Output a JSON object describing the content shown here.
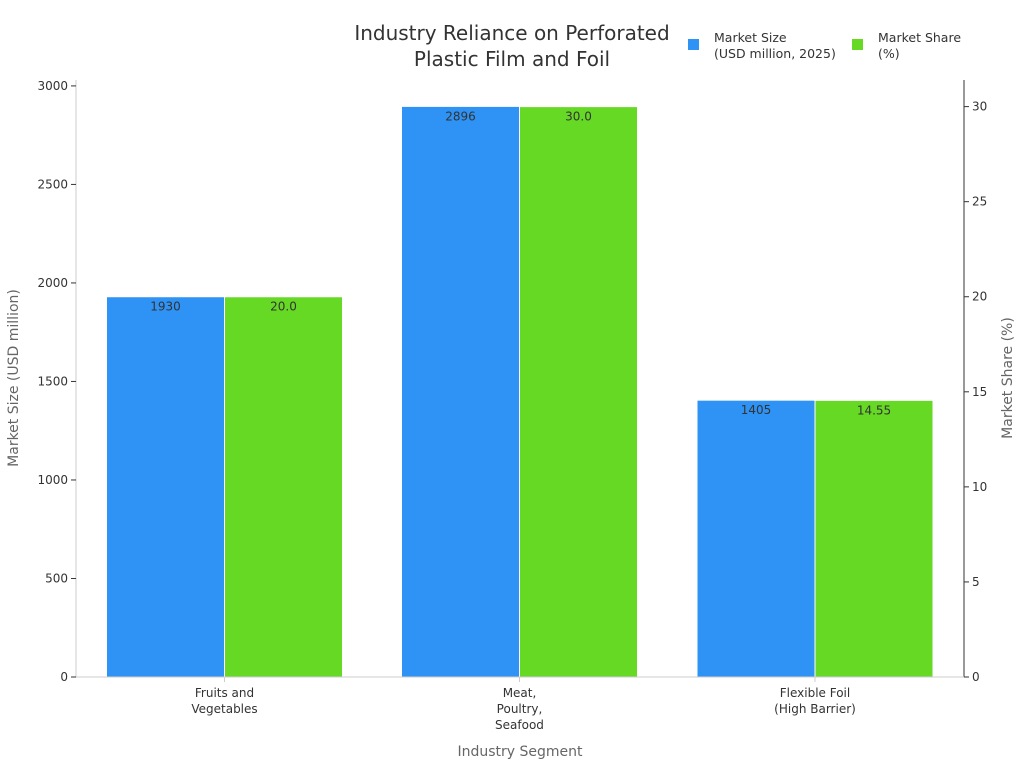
{
  "colors": {
    "market_size": "#2e93f5",
    "market_share": "#66d925",
    "axis": "#cccccc",
    "text": "#333333",
    "axis_title": "#666666"
  },
  "chart_data": {
    "type": "bar",
    "title_lines": [
      "Industry Reliance on Perforated",
      "Plastic Film and Foil"
    ],
    "categories": [
      [
        "Fruits and",
        "Vegetables"
      ],
      [
        "Meat,",
        "Poultry,",
        "Seafood"
      ],
      [
        "Flexible Foil",
        "(High Barrier)"
      ]
    ],
    "series": [
      {
        "name_lines": [
          "Market Size",
          "(USD million, 2025)"
        ],
        "axis": "left",
        "values": [
          1930,
          2896,
          1405
        ],
        "labels": [
          "1930",
          "2896",
          "1405"
        ]
      },
      {
        "name_lines": [
          "Market Share",
          "(%)"
        ],
        "axis": "right",
        "values": [
          20.0,
          30.0,
          14.55
        ],
        "labels": [
          "20.0",
          "30.0",
          "14.55"
        ]
      }
    ],
    "xlabel": "Industry Segment",
    "ylabel_left": "Market Size (USD million)",
    "ylabel_right": "Market Share (%)",
    "ylim_left": [
      0,
      3030
    ],
    "ylim_right": [
      0,
      31.4
    ],
    "yticks_left": [
      0,
      500,
      1000,
      1500,
      2000,
      2500,
      3000
    ],
    "yticks_right": [
      0,
      5,
      10,
      15,
      20,
      25,
      30
    ],
    "legend_position": "top-right",
    "grid": false
  }
}
